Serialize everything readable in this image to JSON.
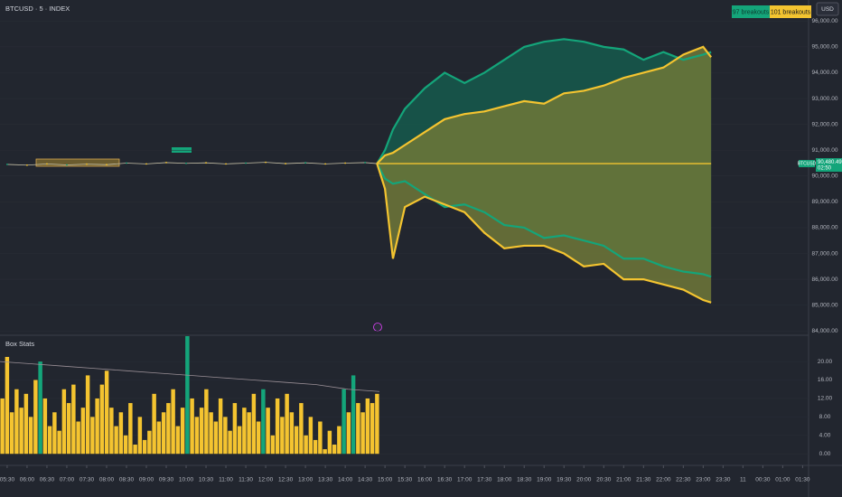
{
  "header": {
    "title": "BTCUSD · 5 · INDEX",
    "currency": "USD"
  },
  "chart_data": [
    {
      "type": "bands",
      "xlim": [
        5.32,
        25.65
      ],
      "xticks": [
        {
          "value": 5.5,
          "label": "05:30"
        },
        {
          "value": 6,
          "label": "06:00"
        },
        {
          "value": 6.5,
          "label": "06:30"
        },
        {
          "value": 7,
          "label": "07:00"
        },
        {
          "value": 7.5,
          "label": "07:30"
        },
        {
          "value": 8,
          "label": "08:00"
        },
        {
          "value": 8.5,
          "label": "08:30"
        },
        {
          "value": 9,
          "label": "09:00"
        },
        {
          "value": 9.5,
          "label": "09:30"
        },
        {
          "value": 10,
          "label": "10:00"
        },
        {
          "value": 10.5,
          "label": "10:30"
        },
        {
          "value": 11,
          "label": "11:00"
        },
        {
          "value": 11.5,
          "label": "11:30"
        },
        {
          "value": 12,
          "label": "12:00"
        },
        {
          "value": 12.5,
          "label": "12:30"
        },
        {
          "value": 13,
          "label": "13:00"
        },
        {
          "value": 13.5,
          "label": "13:30"
        },
        {
          "value": 14,
          "label": "14:00"
        },
        {
          "value": 14.5,
          "label": "14:30"
        },
        {
          "value": 15,
          "label": "15:00"
        },
        {
          "value": 15.5,
          "label": "15:30"
        },
        {
          "value": 16,
          "label": "16:00"
        },
        {
          "value": 16.5,
          "label": "16:30"
        },
        {
          "value": 17,
          "label": "17:00"
        },
        {
          "value": 17.5,
          "label": "17:30"
        },
        {
          "value": 18,
          "label": "18:00"
        },
        {
          "value": 18.5,
          "label": "18:30"
        },
        {
          "value": 19,
          "label": "19:00"
        },
        {
          "value": 19.5,
          "label": "19:30"
        },
        {
          "value": 20,
          "label": "20:00"
        },
        {
          "value": 20.5,
          "label": "20:30"
        },
        {
          "value": 21,
          "label": "21:00"
        },
        {
          "value": 21.5,
          "label": "21:30"
        },
        {
          "value": 22,
          "label": "22:00"
        },
        {
          "value": 22.5,
          "label": "22:30"
        },
        {
          "value": 23,
          "label": "23:00"
        },
        {
          "value": 23.5,
          "label": "23:30"
        },
        {
          "value": 24,
          "label": "11"
        },
        {
          "value": 24.5,
          "label": "00:30"
        },
        {
          "value": 25,
          "label": "01:00"
        },
        {
          "value": 25.5,
          "label": "01:30"
        }
      ],
      "ylim": [
        83800,
        96500
      ],
      "yticks": [
        {
          "value": 84000,
          "label": "84,000.00"
        },
        {
          "value": 85000,
          "label": "85,000.00"
        },
        {
          "value": 86000,
          "label": "86,000.00"
        },
        {
          "value": 87000,
          "label": "87,000.00"
        },
        {
          "value": 88000,
          "label": "88,000.00"
        },
        {
          "value": 89000,
          "label": "89,000.00"
        },
        {
          "value": 90000,
          "label": "90,000.00"
        },
        {
          "value": 91000,
          "label": "91,000.00"
        },
        {
          "value": 92000,
          "label": "92,000.00"
        },
        {
          "value": 93000,
          "label": "93,000.00"
        },
        {
          "value": 94000,
          "label": "94,000.00"
        },
        {
          "value": 95000,
          "label": "95,000.00"
        },
        {
          "value": 96000,
          "label": "96,000.00"
        }
      ],
      "price": {
        "color": "#c8c2a8",
        "x": [
          5.5,
          6,
          6.5,
          7,
          7.5,
          8,
          8.5,
          9,
          9.5,
          10,
          10.5,
          11,
          11.5,
          12,
          12.5,
          13,
          13.5,
          14,
          14.5,
          14.8
        ],
        "values": [
          90450,
          90420,
          90470,
          90430,
          90460,
          90440,
          90500,
          90470,
          90520,
          90490,
          90510,
          90470,
          90500,
          90530,
          90480,
          90510,
          90470,
          90500,
          90520,
          90480
        ]
      },
      "x": [
        14.8,
        15,
        15.2,
        15.5,
        16,
        16.5,
        17,
        17.5,
        18,
        18.5,
        19,
        19.5,
        20,
        20.5,
        21,
        21.5,
        22,
        22.5,
        23,
        23.2
      ],
      "bands": [
        {
          "name": "97 breakouts",
          "color": "#14a57a",
          "fill": "#155b4c",
          "upper": [
            90480,
            91000,
            91800,
            92600,
            93400,
            94000,
            93600,
            94000,
            94500,
            95000,
            95200,
            95300,
            95200,
            95000,
            94900,
            94500,
            94800,
            94500,
            94700,
            94800
          ],
          "lower": [
            90480,
            89900,
            89700,
            89800,
            89300,
            88800,
            88900,
            88600,
            88100,
            88000,
            87600,
            87700,
            87500,
            87300,
            86800,
            86800,
            86500,
            86300,
            86200,
            86100
          ]
        },
        {
          "name": "101 breakouts",
          "color": "#f4c430",
          "fill": "#6e7838",
          "upper": [
            90480,
            90800,
            90900,
            91200,
            91700,
            92200,
            92400,
            92500,
            92700,
            92900,
            92800,
            93200,
            93300,
            93500,
            93800,
            94000,
            94200,
            94700,
            95000,
            94600
          ],
          "lower": [
            90480,
            89500,
            86800,
            88800,
            89200,
            88900,
            88600,
            87800,
            87200,
            87300,
            87300,
            87000,
            86500,
            86600,
            86000,
            86000,
            85800,
            85600,
            85200,
            85100
          ]
        }
      ],
      "last_price": {
        "symbol": "BTCUSD",
        "value": 90480.49,
        "label": "90,480.49",
        "countdown": "02:50"
      }
    },
    {
      "type": "bar",
      "title": "Box Stats",
      "ylim": [
        -2.5,
        25.5
      ],
      "yticks": [
        {
          "value": 0,
          "label": "0.00"
        },
        {
          "value": 4,
          "label": "4.00"
        },
        {
          "value": 8,
          "label": "8.00"
        },
        {
          "value": 12,
          "label": "12.00"
        },
        {
          "value": 16,
          "label": "16.00"
        },
        {
          "value": 20,
          "label": "20.00"
        }
      ],
      "values": [
        12,
        21,
        9,
        14,
        10,
        13,
        8,
        16,
        20,
        12,
        6,
        9,
        5,
        14,
        11,
        15,
        7,
        10,
        17,
        8,
        12,
        15,
        18,
        10,
        6,
        9,
        4,
        11,
        2,
        8,
        3,
        5,
        13,
        7,
        9,
        11,
        14,
        6,
        10,
        26,
        12,
        8,
        10,
        14,
        9,
        7,
        12,
        8,
        5,
        11,
        6,
        10,
        9,
        13,
        7,
        14,
        10,
        4,
        12,
        8,
        13,
        9,
        6,
        11,
        4,
        8,
        3,
        7,
        1,
        5,
        2,
        6,
        14,
        9,
        17,
        11,
        9,
        12,
        11,
        13
      ],
      "colors": [
        "#f4c430",
        "#f4c430",
        "#f4c430",
        "#f4c430",
        "#f4c430",
        "#f4c430",
        "#f4c430",
        "#f4c430",
        "#14a57a",
        "#f4c430",
        "#f4c430",
        "#f4c430",
        "#f4c430",
        "#f4c430",
        "#f4c430",
        "#f4c430",
        "#f4c430",
        "#f4c430",
        "#f4c430",
        "#f4c430",
        "#f4c430",
        "#f4c430",
        "#f4c430",
        "#f4c430",
        "#f4c430",
        "#f4c430",
        "#f4c430",
        "#f4c430",
        "#f4c430",
        "#f4c430",
        "#f4c430",
        "#f4c430",
        "#f4c430",
        "#f4c430",
        "#f4c430",
        "#f4c430",
        "#f4c430",
        "#f4c430",
        "#f4c430",
        "#14a57a",
        "#f4c430",
        "#f4c430",
        "#f4c430",
        "#f4c430",
        "#f4c430",
        "#f4c430",
        "#f4c430",
        "#f4c430",
        "#f4c430",
        "#f4c430",
        "#f4c430",
        "#f4c430",
        "#f4c430",
        "#f4c430",
        "#f4c430",
        "#14a57a",
        "#f4c430",
        "#f4c430",
        "#f4c430",
        "#f4c430",
        "#f4c430",
        "#f4c430",
        "#f4c430",
        "#f4c430",
        "#f4c430",
        "#f4c430",
        "#f4c430",
        "#f4c430",
        "#f4c430",
        "#f4c430",
        "#f4c430",
        "#f4c430",
        "#14a57a",
        "#f4c430",
        "#14a57a",
        "#f4c430",
        "#f4c430",
        "#f4c430",
        "#f4c430",
        "#f4c430"
      ],
      "line": {
        "color": "#9a8f96",
        "values": [
          20,
          19.5,
          19,
          18.5,
          18,
          17.5,
          17,
          16.5,
          16,
          15.5,
          15,
          14,
          13.5
        ]
      }
    }
  ]
}
